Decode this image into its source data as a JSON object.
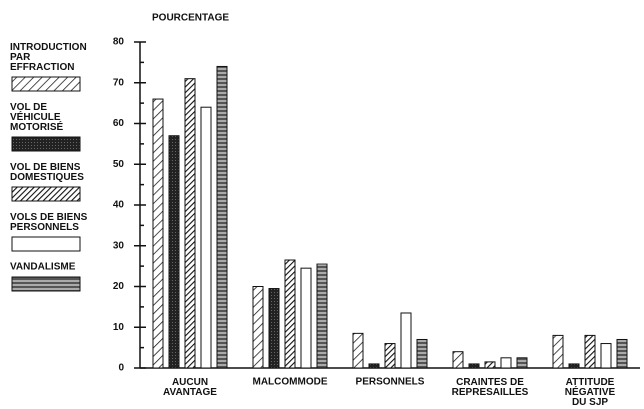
{
  "chart_data": {
    "type": "bar",
    "title": "POURCENTAGE",
    "categories": [
      "AUCUN\nAVANTAGE",
      "MALCOMMODE",
      "PERSONNELS",
      "CRAINTES DE\nREPRESAILLES",
      "ATTITUDE\nNÉGATIVE\nDU SJP"
    ],
    "series": [
      {
        "name": "INTRODUCTION\nPAR\nEFFRACTION",
        "color": "#ffffff",
        "pattern": "diagonal",
        "values": [
          66,
          20,
          8.5,
          4,
          8
        ]
      },
      {
        "name": "VOL DE\nVÉHICULE\nMOTORISÉ",
        "color": "#222222",
        "pattern": "solid",
        "values": [
          57,
          19.5,
          1,
          1,
          1
        ]
      },
      {
        "name": "VOL DE BIENS\nDOMESTIQUES",
        "color": "#ffffff",
        "pattern": "dense-diagonal",
        "values": [
          71,
          26.5,
          6,
          1.5,
          8
        ]
      },
      {
        "name": "VOLS DE BIENS\nPERSONNELS",
        "color": "#ffffff",
        "pattern": "none",
        "values": [
          64,
          24.5,
          13.5,
          2.5,
          6
        ]
      },
      {
        "name": "VANDALISME",
        "color": "#ffffff",
        "pattern": "horizontal",
        "values": [
          74,
          25.5,
          7,
          2.5,
          7
        ]
      }
    ],
    "ylim": [
      0,
      80
    ],
    "yticks": [
      0,
      10,
      20,
      30,
      40,
      50,
      60,
      70,
      80
    ],
    "legend": "left"
  }
}
